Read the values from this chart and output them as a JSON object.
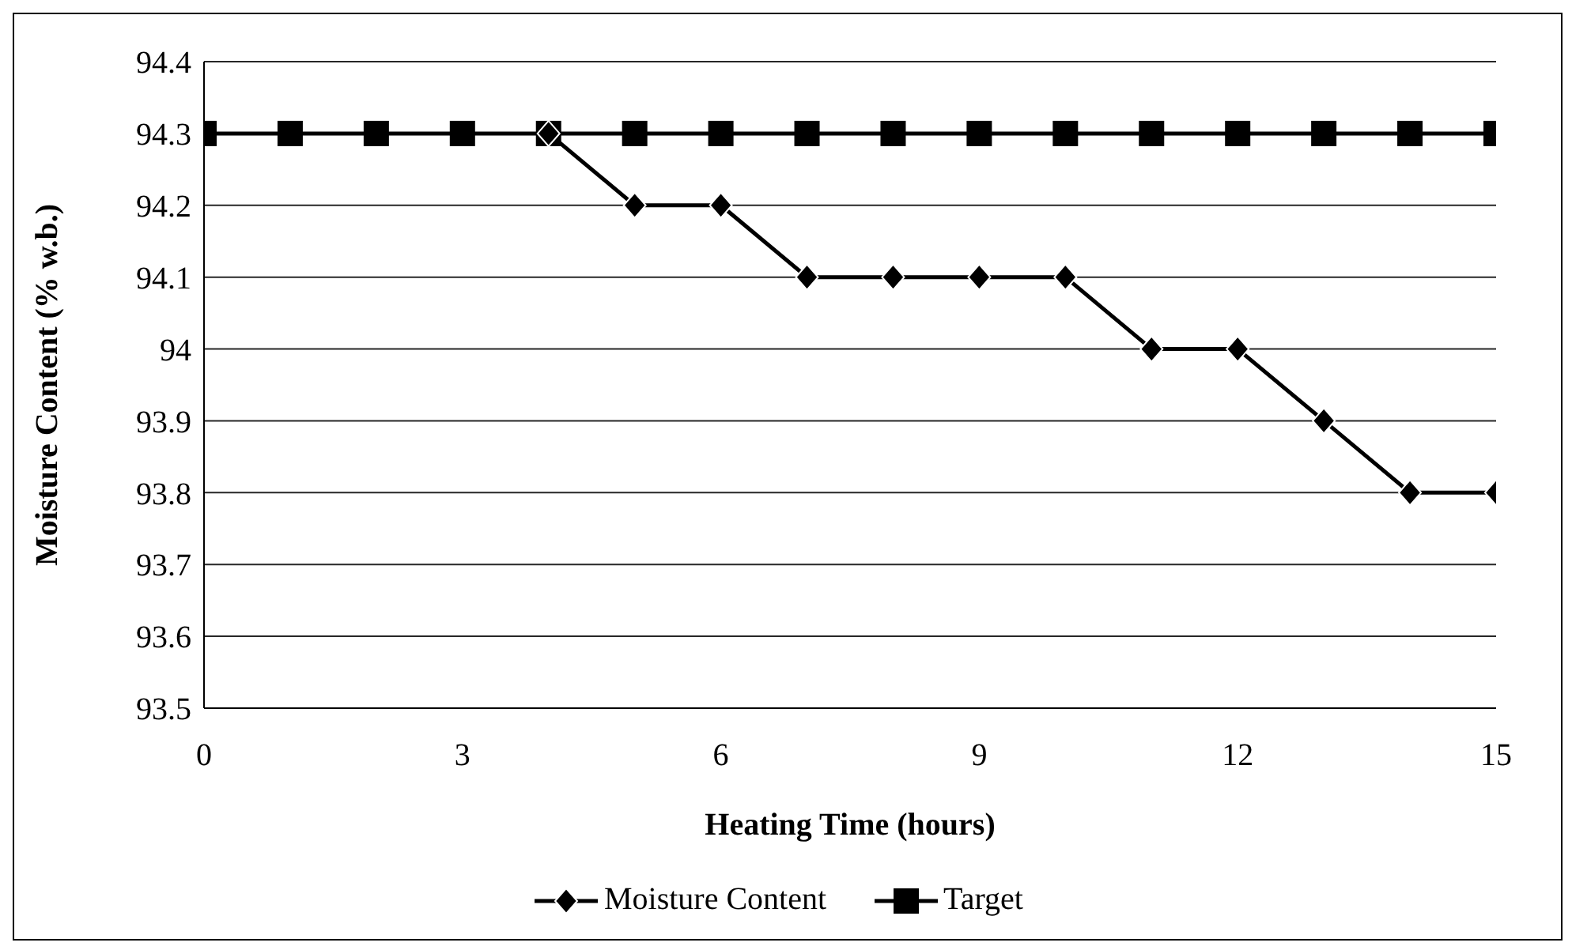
{
  "chart_data": {
    "type": "line",
    "xlabel": "Heating Time (hours)",
    "ylabel": "Moisture Content (% w.b.)",
    "x": [
      0,
      1,
      2,
      3,
      4,
      5,
      6,
      7,
      8,
      9,
      10,
      11,
      12,
      13,
      14,
      15
    ],
    "series": [
      {
        "name": "Moisture Content",
        "color": "#000000",
        "marker": "diamond",
        "values": [
          null,
          null,
          null,
          null,
          94.3,
          94.2,
          94.2,
          94.1,
          94.1,
          94.1,
          94.1,
          94.0,
          94.0,
          93.9,
          93.8,
          93.8
        ]
      },
      {
        "name": "Target",
        "color": "#000000",
        "marker": "square",
        "values": [
          94.3,
          94.3,
          94.3,
          94.3,
          94.3,
          94.3,
          94.3,
          94.3,
          94.3,
          94.3,
          94.3,
          94.3,
          94.3,
          94.3,
          94.3,
          94.3
        ]
      }
    ],
    "xlim": [
      0,
      15
    ],
    "xticks": [
      0,
      3,
      6,
      9,
      12,
      15
    ],
    "ylim": [
      93.5,
      94.4
    ],
    "yticks": [
      93.5,
      93.6,
      93.7,
      93.8,
      93.9,
      94,
      94.1,
      94.2,
      94.3,
      94.4
    ],
    "grid": "y",
    "legend": "bottom",
    "line_style": "solid"
  }
}
